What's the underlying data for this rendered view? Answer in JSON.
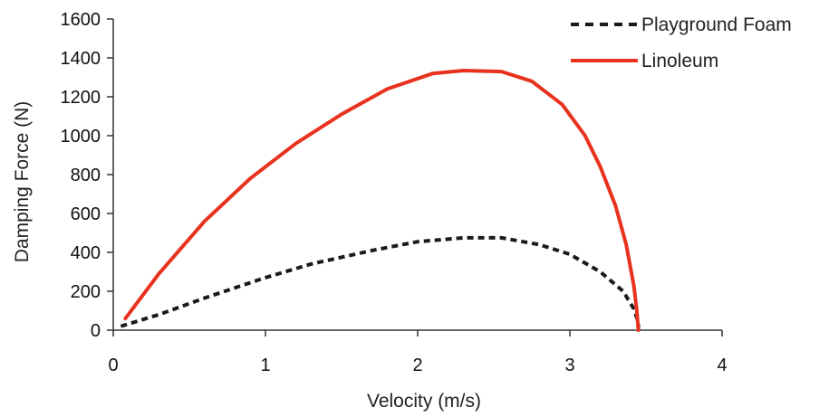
{
  "chart_data": {
    "type": "line",
    "title": "",
    "xlabel": "Velocity (m/s)",
    "ylabel": "Damping Force (N)",
    "xlim": [
      0,
      4
    ],
    "ylim": [
      0,
      1600
    ],
    "x_ticks": [
      "0",
      "1",
      "2",
      "3",
      "4"
    ],
    "y_ticks": [
      "0",
      "200",
      "400",
      "600",
      "800",
      "1000",
      "1200",
      "1400",
      "1600"
    ],
    "grid": false,
    "legend_position": "top-right",
    "series": [
      {
        "name": "Playground Foam",
        "color": "#1a1a1a",
        "style": "dashed",
        "points": [
          [
            0.05,
            20
          ],
          [
            0.3,
            80
          ],
          [
            0.6,
            165
          ],
          [
            1.0,
            270
          ],
          [
            1.3,
            340
          ],
          [
            1.7,
            410
          ],
          [
            2.0,
            455
          ],
          [
            2.3,
            475
          ],
          [
            2.55,
            475
          ],
          [
            2.8,
            440
          ],
          [
            3.0,
            390
          ],
          [
            3.2,
            300
          ],
          [
            3.35,
            200
          ],
          [
            3.42,
            110
          ],
          [
            3.45,
            40
          ],
          [
            3.45,
            0
          ]
        ]
      },
      {
        "name": "Linoleum",
        "color": "#e8321e",
        "style": "solid",
        "points": [
          [
            0.08,
            60
          ],
          [
            0.3,
            290
          ],
          [
            0.6,
            560
          ],
          [
            0.9,
            780
          ],
          [
            1.2,
            960
          ],
          [
            1.5,
            1110
          ],
          [
            1.8,
            1240
          ],
          [
            2.1,
            1320
          ],
          [
            2.3,
            1335
          ],
          [
            2.55,
            1330
          ],
          [
            2.75,
            1280
          ],
          [
            2.95,
            1160
          ],
          [
            3.1,
            1000
          ],
          [
            3.2,
            840
          ],
          [
            3.3,
            640
          ],
          [
            3.37,
            440
          ],
          [
            3.42,
            230
          ],
          [
            3.44,
            100
          ],
          [
            3.45,
            0
          ]
        ]
      }
    ]
  }
}
